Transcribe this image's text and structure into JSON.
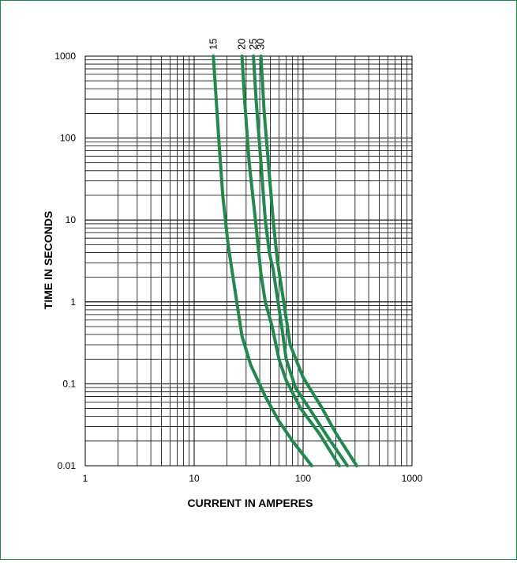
{
  "chart_data": {
    "type": "line",
    "title": "",
    "xlabel": "CURRENT IN AMPERES",
    "ylabel": "TIME IN SECONDS",
    "x_scale": "log",
    "y_scale": "log",
    "xlim": [
      1,
      1000
    ],
    "ylim": [
      0.01,
      1000
    ],
    "x_tick_labels": [
      "1",
      "10",
      "100",
      "1000"
    ],
    "y_tick_labels": [
      "0.01",
      "0.1",
      "1",
      "10",
      "100",
      "1000"
    ],
    "grid": true,
    "line_color": "#1f8a4c",
    "series": [
      {
        "name": "15",
        "points": [
          [
            15,
            1000
          ],
          [
            16.8,
            100
          ],
          [
            18.3,
            20
          ],
          [
            20.5,
            5
          ],
          [
            23.5,
            1.5
          ],
          [
            27.5,
            0.38
          ],
          [
            33,
            0.17
          ],
          [
            45,
            0.07
          ],
          [
            60,
            0.035
          ],
          [
            80,
            0.02
          ],
          [
            120,
            0.01
          ]
        ]
      },
      {
        "name": "20",
        "points": [
          [
            27.5,
            1000
          ],
          [
            29,
            300
          ],
          [
            32,
            50
          ],
          [
            36.5,
            10
          ],
          [
            41,
            2.2
          ],
          [
            45,
            1
          ],
          [
            52,
            0.5
          ],
          [
            60,
            0.2
          ],
          [
            70,
            0.11
          ],
          [
            95,
            0.05
          ],
          [
            140,
            0.025
          ],
          [
            215,
            0.01
          ]
        ]
      },
      {
        "name": "25",
        "points": [
          [
            35,
            1000
          ],
          [
            37,
            300
          ],
          [
            41,
            50
          ],
          [
            45,
            10
          ],
          [
            49,
            4
          ],
          [
            53,
            2.5
          ],
          [
            63,
            0.55
          ],
          [
            70,
            0.2
          ],
          [
            85,
            0.09
          ],
          [
            120,
            0.045
          ],
          [
            170,
            0.022
          ],
          [
            255,
            0.01
          ]
        ]
      },
      {
        "name": "30",
        "points": [
          [
            41,
            1000
          ],
          [
            44,
            200
          ],
          [
            48,
            50
          ],
          [
            53,
            10
          ],
          [
            58,
            3.2
          ],
          [
            65,
            1.2
          ],
          [
            76,
            0.3
          ],
          [
            100,
            0.12
          ],
          [
            150,
            0.05
          ],
          [
            200,
            0.025
          ],
          [
            310,
            0.01
          ]
        ]
      }
    ]
  }
}
